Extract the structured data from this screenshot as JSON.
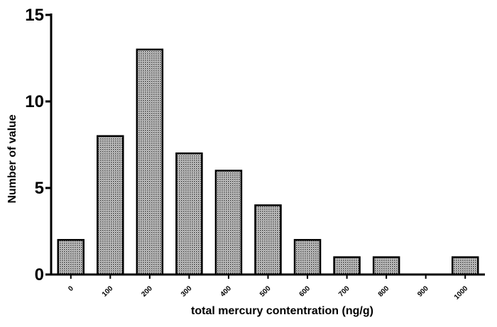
{
  "chart_data": {
    "type": "bar",
    "title": "",
    "xlabel": "total mercury contentration (ng/g)",
    "ylabel": "Number of value",
    "categories": [
      "0",
      "100",
      "200",
      "300",
      "400",
      "500",
      "600",
      "700",
      "800",
      "900",
      "1000"
    ],
    "values": [
      2,
      8,
      13,
      7,
      6,
      4,
      2,
      1,
      1,
      0,
      1
    ],
    "ylim": [
      0,
      15
    ],
    "yticks": [
      "0",
      "5",
      "10",
      "15"
    ],
    "grid": false,
    "legend": "none",
    "bar_fill": "#9a9a9a",
    "bar_edge": "#000000"
  }
}
